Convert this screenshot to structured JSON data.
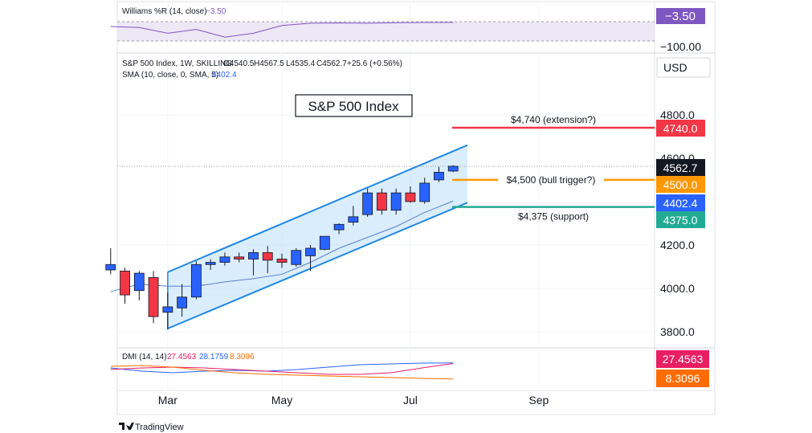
{
  "chart_data": {
    "type": "candlestick",
    "title": "S&P 500 Index",
    "symbol_line": "S&P 500 Index, 1W, SKILLING",
    "ohlc_line": {
      "open": "O4540.5",
      "high": "H4567.5",
      "low": "L4535.4",
      "close": "C4562.7",
      "change": "+25.6 (+0.56%)"
    },
    "sma_line": {
      "label": "SMA (10, close, 0, SMA, 5)",
      "value": "4402.4"
    },
    "currency": "USD",
    "price_axis": {
      "ylim": [
        3750,
        4880
      ],
      "ticks": [
        3800,
        4000,
        4200,
        4800
      ],
      "tick_labels": [
        "3800.0",
        "4000.0",
        "4200.0",
        "4800.0"
      ],
      "partial_label": "4600.0"
    },
    "time_axis": {
      "labels": [
        "Mar",
        "May",
        "Jul",
        "Sep"
      ],
      "label_weeks": [
        -8,
        0,
        9,
        18
      ]
    },
    "candles": [
      {
        "week": -12,
        "o": 4085,
        "h": 4185,
        "l": 4065,
        "c": 4110
      },
      {
        "week": -11,
        "o": 4080,
        "h": 4095,
        "l": 3930,
        "c": 3970
      },
      {
        "week": -10,
        "o": 3990,
        "h": 4080,
        "l": 3945,
        "c": 4070
      },
      {
        "week": -9,
        "o": 4050,
        "h": 4080,
        "l": 3840,
        "c": 3870
      },
      {
        "week": -8,
        "o": 3890,
        "h": 3980,
        "l": 3810,
        "c": 3915
      },
      {
        "week": -7,
        "o": 3910,
        "h": 4020,
        "l": 3870,
        "c": 3960
      },
      {
        "week": -6,
        "o": 3960,
        "h": 4125,
        "l": 3950,
        "c": 4110
      },
      {
        "week": -5,
        "o": 4110,
        "h": 4135,
        "l": 4085,
        "c": 4120
      },
      {
        "week": -4,
        "o": 4120,
        "h": 4165,
        "l": 4105,
        "c": 4145
      },
      {
        "week": -3,
        "o": 4145,
        "h": 4165,
        "l": 4120,
        "c": 4135
      },
      {
        "week": -2,
        "o": 4135,
        "h": 4180,
        "l": 4060,
        "c": 4165
      },
      {
        "week": -1,
        "o": 4165,
        "h": 4195,
        "l": 4070,
        "c": 4130
      },
      {
        "week": 0,
        "o": 4135,
        "h": 4160,
        "l": 4095,
        "c": 4120
      },
      {
        "week": 1,
        "o": 4110,
        "h": 4185,
        "l": 4100,
        "c": 4175
      },
      {
        "week": 2,
        "o": 4150,
        "h": 4200,
        "l": 4080,
        "c": 4185
      },
      {
        "week": 3,
        "o": 4180,
        "h": 4240,
        "l": 4175,
        "c": 4240
      },
      {
        "week": 4,
        "o": 4270,
        "h": 4300,
        "l": 4250,
        "c": 4295
      },
      {
        "week": 5,
        "o": 4305,
        "h": 4380,
        "l": 4290,
        "c": 4330
      },
      {
        "week": 6,
        "o": 4340,
        "h": 4460,
        "l": 4330,
        "c": 4440
      },
      {
        "week": 7,
        "o": 4440,
        "h": 4460,
        "l": 4340,
        "c": 4360
      },
      {
        "week": 8,
        "o": 4360,
        "h": 4460,
        "l": 4340,
        "c": 4440
      },
      {
        "week": 9,
        "o": 4440,
        "h": 4470,
        "l": 4395,
        "c": 4400
      },
      {
        "week": 10,
        "o": 4400,
        "h": 4510,
        "l": 4390,
        "c": 4485
      },
      {
        "week": 11,
        "o": 4500,
        "h": 4560,
        "l": 4490,
        "c": 4535
      },
      {
        "week": 12,
        "o": 4540.5,
        "h": 4567.5,
        "l": 4535.4,
        "c": 4562.7
      }
    ],
    "sma_series": [
      {
        "week": -12,
        "v": 3985
      },
      {
        "week": -10,
        "v": 4020
      },
      {
        "week": -8,
        "v": 4010
      },
      {
        "week": -6,
        "v": 4010
      },
      {
        "week": -4,
        "v": 4030
      },
      {
        "week": -2,
        "v": 4045
      },
      {
        "week": 0,
        "v": 4065
      },
      {
        "week": 2,
        "v": 4120
      },
      {
        "week": 4,
        "v": 4185
      },
      {
        "week": 6,
        "v": 4235
      },
      {
        "week": 8,
        "v": 4285
      },
      {
        "week": 10,
        "v": 4350
      },
      {
        "week": 12,
        "v": 4402.4
      }
    ],
    "channel": {
      "upper": [
        {
          "week": -8,
          "v": 4075
        },
        {
          "week": 13,
          "v": 4660
        }
      ],
      "lower": [
        {
          "week": -8,
          "v": 3815
        },
        {
          "week": 13,
          "v": 4395
        }
      ]
    },
    "levels": [
      {
        "value": 4740,
        "label": "$4,740 (extension?)",
        "tag": "4740.0",
        "color": "#f23645"
      },
      {
        "value": 4500,
        "label": "$4,500 (bull trigger?)",
        "tag": "4500.0",
        "color": "#ff9800"
      },
      {
        "value": 4375,
        "label": "$4,375 (support)",
        "tag": "4375.0",
        "color": "#22ab94"
      }
    ],
    "price_tags": [
      {
        "value": 4562.7,
        "tag": "4562.7",
        "color": "#131722"
      },
      {
        "value": 4402.4,
        "tag": "4402.4",
        "color": "#2962ff"
      }
    ],
    "last_price_line": 4562.7,
    "williams": {
      "label": "Williams %R (14, close)",
      "value": "−3.50",
      "value_color": "#7e57c2",
      "axis_label": "−100.00",
      "series": [
        -25,
        -30,
        -60,
        -40,
        -80,
        -60,
        -20,
        -8,
        -6,
        -8,
        -5,
        -4,
        -3.5
      ]
    },
    "dmi": {
      "label": "DMI (14, 14)",
      "values": [
        "27.4563",
        "28.1759",
        "8.3096"
      ],
      "colors": [
        "#e91e63",
        "#2962ff",
        "#ff6d00"
      ],
      "plus_series": [
        22,
        18,
        16,
        18,
        19,
        18,
        20,
        23,
        26,
        27,
        28,
        28.2
      ],
      "minus_series": [
        20,
        22,
        23,
        22,
        20,
        18,
        16,
        14,
        14,
        16,
        22,
        27.4563
      ],
      "adx_series": [
        24,
        25,
        23,
        19,
        16,
        14,
        13,
        12,
        11,
        10,
        9,
        8.3096
      ],
      "tags": [
        {
          "tag": "27.4563",
          "color": "#e91e63"
        },
        {
          "tag": "8.3096",
          "color": "#ff6d00"
        }
      ]
    },
    "colors": {
      "up": "#2962ff",
      "down": "#f23645",
      "channel_fill": "#bbdefb",
      "channel_line": "#1e88e5",
      "sma": "#5b7fd1"
    }
  },
  "footer": {
    "brand": "TradingView"
  }
}
